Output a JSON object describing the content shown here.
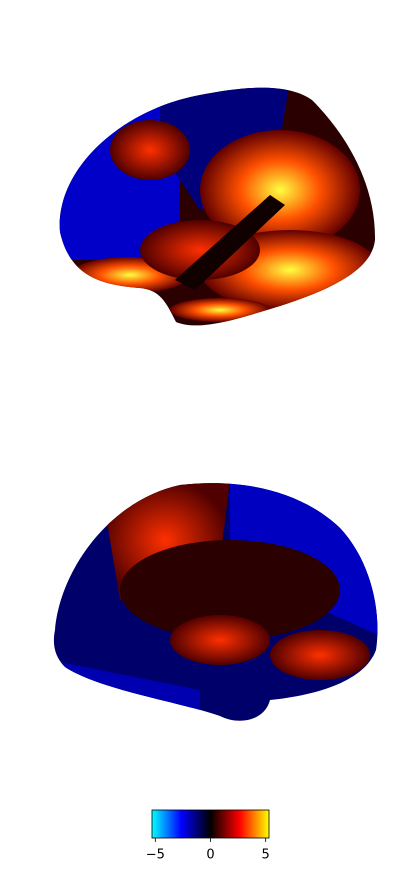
{
  "chart_data": {
    "type": "surface",
    "colorbar": {
      "colors": [
        "#00ffff",
        "#0000ff",
        "#000000",
        "#ff0000",
        "#ffff00"
      ],
      "xlim": [
        -5.3,
        5.3
      ],
      "xticks": [
        {
          "value": -5,
          "label": "−5"
        },
        0,
        5
      ]
    }
  }
}
